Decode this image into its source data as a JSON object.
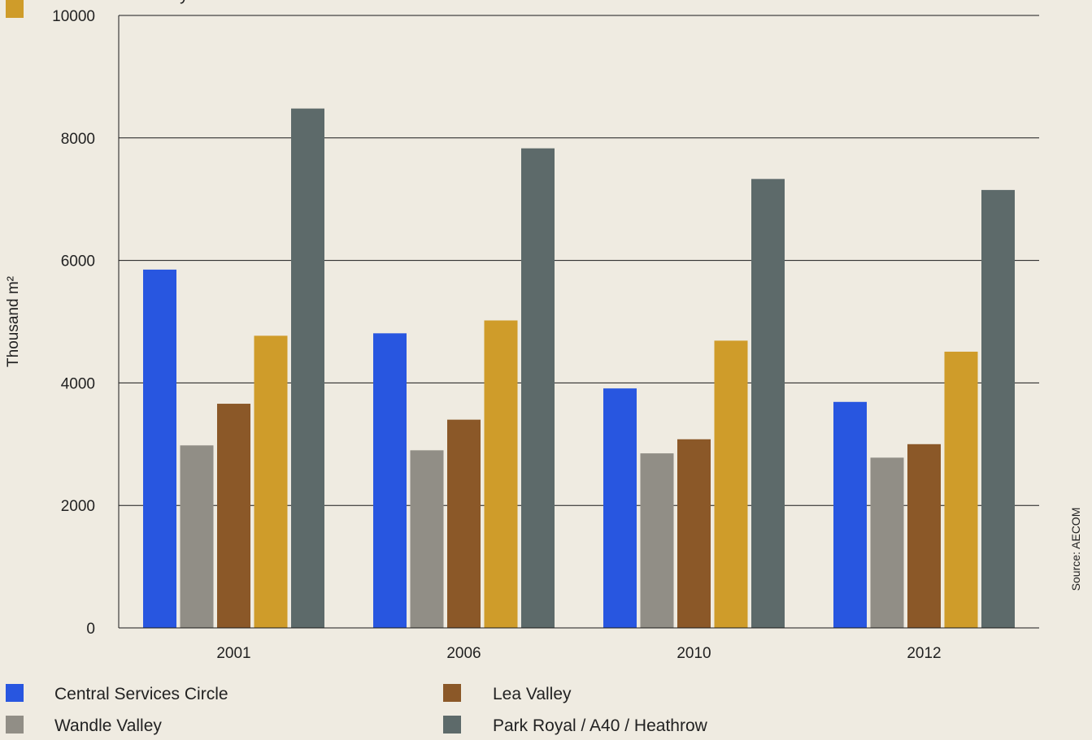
{
  "chart_data": {
    "type": "bar",
    "ylabel": "Thousand m²",
    "ylim": [
      0,
      10000
    ],
    "yticks": [
      0,
      2000,
      4000,
      6000,
      8000,
      10000
    ],
    "grid": true,
    "legend_position": "bottom",
    "categories": [
      "2001",
      "2006",
      "2010",
      "2012"
    ],
    "series": [
      {
        "name": "Central Services Circle",
        "color": "#2856E0",
        "values": [
          5850,
          4810,
          3910,
          3690
        ]
      },
      {
        "name": "Wandle Valley",
        "color": "#918E86",
        "values": [
          2980,
          2900,
          2850,
          2780
        ]
      },
      {
        "name": "Lea Valley",
        "color": "#8B5828",
        "values": [
          3660,
          3400,
          3080,
          3000
        ]
      },
      {
        "name": "Thames Gateway",
        "color": "#CF9C2A",
        "values": [
          4770,
          5020,
          4690,
          4510
        ]
      },
      {
        "name": "Park Royal / A40 / Heathrow",
        "color": "#5D6A6A",
        "values": [
          8480,
          7830,
          7330,
          7150
        ]
      }
    ],
    "source": "Source: AECOM"
  }
}
